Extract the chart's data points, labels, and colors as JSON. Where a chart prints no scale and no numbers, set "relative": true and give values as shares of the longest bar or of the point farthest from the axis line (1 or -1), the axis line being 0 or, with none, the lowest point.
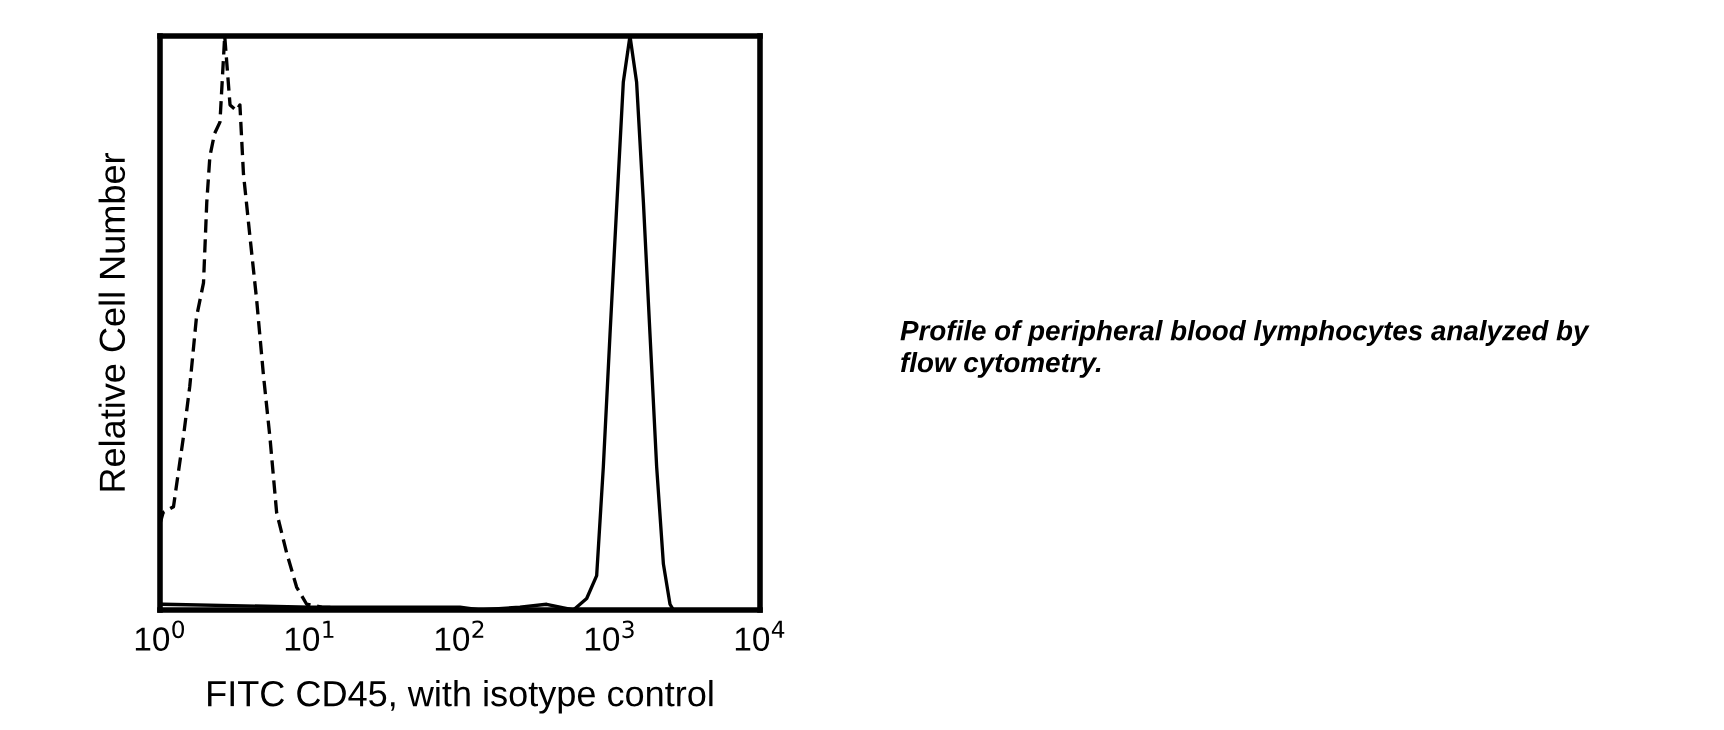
{
  "chart_data": {
    "type": "line",
    "relative": true,
    "log": "x",
    "xlabel": "FITC CD45, with isotype control",
    "ylabel": "Relative Cell Number",
    "xlim": [
      1,
      10000
    ],
    "xticks": [
      {
        "value": 1,
        "label": "10$^{0}$"
      },
      {
        "value": 10,
        "label": "10$^{1}$"
      },
      {
        "value": 100,
        "label": "10$^{2}$"
      },
      {
        "value": 1000,
        "label": "10$^{3}$"
      },
      {
        "value": 10000,
        "label": "10$^{4}$"
      }
    ],
    "grid": false,
    "marker": "none",
    "annotations": [
      "Profile of peripheral blood lymphocytes analyzed by flow cytometry."
    ],
    "series": [
      {
        "color": "#000000",
        "line_style": "dashed",
        "x": [
          1.0,
          1.05,
          1.23,
          1.43,
          1.58,
          1.75,
          1.95,
          2.05,
          2.15,
          2.31,
          2.51,
          2.7,
          2.93,
          3.24,
          3.41,
          3.6,
          3.98,
          4.41,
          4.89,
          5.41,
          5.99,
          6.98,
          8.14,
          9.5,
          12,
          20,
          50
        ],
        "values": [
          0.15,
          0.17,
          0.18,
          0.3,
          0.39,
          0.51,
          0.57,
          0.71,
          0.79,
          0.83,
          0.85,
          1.0,
          0.88,
          0.87,
          0.88,
          0.76,
          0.65,
          0.54,
          0.41,
          0.3,
          0.17,
          0.1,
          0.04,
          0.01,
          0.005,
          0.003,
          0
        ]
      },
      {
        "color": "#000000",
        "line_style": "solid",
        "x": [
          1.05,
          10,
          100,
          136,
          251,
          378,
          570,
          699,
          815,
          903,
          1000,
          1107,
          1227,
          1359,
          1504,
          1670,
          1848,
          2046,
          2270,
          2512,
          2649
        ],
        "values": [
          0.01,
          0.005,
          0.005,
          0.0,
          0.005,
          0.01,
          0.0,
          0.02,
          0.06,
          0.25,
          0.48,
          0.7,
          0.92,
          1.0,
          0.92,
          0.71,
          0.48,
          0.25,
          0.08,
          0.01,
          0
        ]
      }
    ]
  }
}
